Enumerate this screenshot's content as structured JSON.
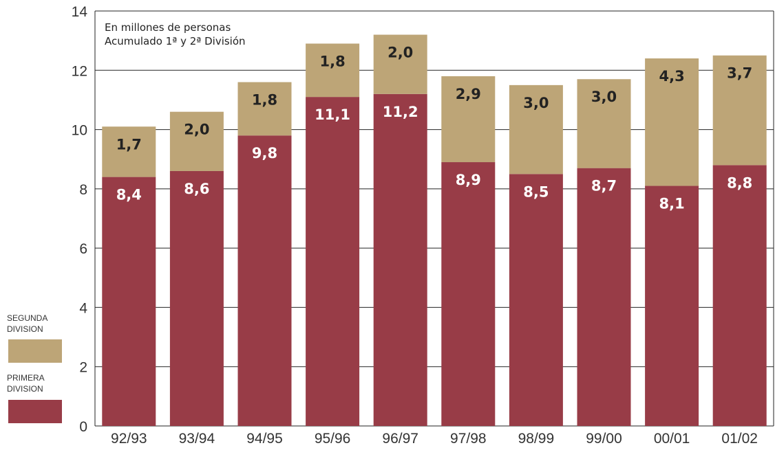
{
  "chart_data": {
    "type": "bar",
    "stacked": true,
    "notes": [
      "En millones de personas",
      "Acumulado 1ª y 2ª División"
    ],
    "categories": [
      "92/93",
      "93/94",
      "94/95",
      "95/96",
      "96/97",
      "97/98",
      "98/99",
      "99/00",
      "00/01",
      "01/02"
    ],
    "series": [
      {
        "name": "PRIMERA DIVISION",
        "color": "#983c47",
        "values": [
          8.4,
          8.6,
          9.8,
          11.1,
          11.2,
          8.9,
          8.5,
          8.7,
          8.1,
          8.8
        ],
        "labels": [
          "8,4",
          "8,6",
          "9,8",
          "11,1",
          "11,2",
          "8,9",
          "8,5",
          "8,7",
          "8,1",
          "8,8"
        ]
      },
      {
        "name": "SEGUNDA DIVISION",
        "color": "#bda577",
        "values": [
          1.7,
          2.0,
          1.8,
          1.8,
          2.0,
          2.9,
          3.0,
          3.0,
          4.3,
          3.7
        ],
        "labels": [
          "1,7",
          "2,0",
          "1,8",
          "1,8",
          "2,0",
          "2,9",
          "3,0",
          "3,0",
          "4,3",
          "3,7"
        ]
      }
    ],
    "ylim": [
      0,
      14
    ],
    "yticks": [
      0,
      2,
      4,
      6,
      8,
      10,
      12,
      14
    ],
    "grid": true,
    "legend_position": "left"
  }
}
